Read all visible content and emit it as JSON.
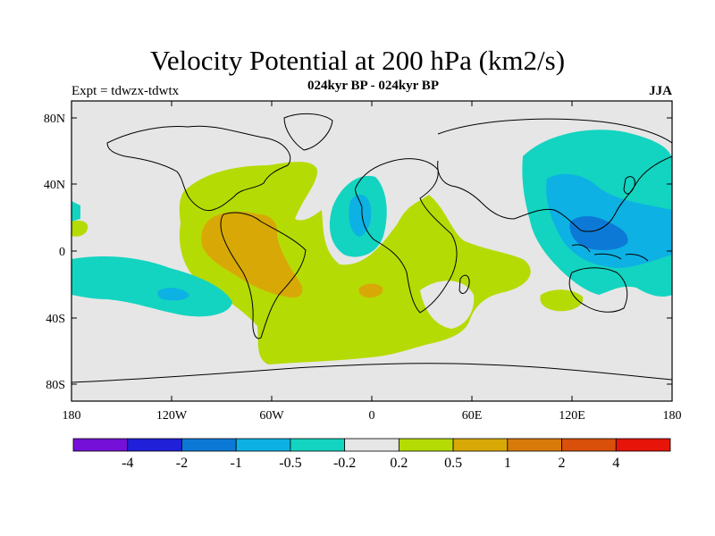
{
  "title": "Velocity Potential at 200 hPa (km2/s)",
  "subtitle": "024kyr BP - 024kyr BP",
  "left_label": "Expt = tdwzx-tdwtx",
  "season": "JJA",
  "axes": {
    "lat_ticks": [
      "80N",
      "40N",
      "0",
      "40S",
      "80S"
    ],
    "lon_ticks": [
      "180",
      "120W",
      "60W",
      "0",
      "60E",
      "120E",
      "180"
    ]
  },
  "colorbar": {
    "colors": [
      "#7510d8",
      "#2020d8",
      "#0d79d6",
      "#0db1e3",
      "#13d4c0",
      "#e6e6e6",
      "#b5db05",
      "#d8a906",
      "#d87a0a",
      "#d85009",
      "#e61409"
    ],
    "labels": [
      "-4",
      "-2",
      "-1",
      "-0.5",
      "-0.2",
      "0.2",
      "0.5",
      "1",
      "2",
      "4"
    ]
  },
  "palette": {
    "neutral": "#e6e6e6",
    "pos1": "#b5db05",
    "pos2": "#d8a906",
    "neg1": "#13d4c0",
    "neg2": "#0db1e3",
    "neg3": "#0d79d6"
  }
}
